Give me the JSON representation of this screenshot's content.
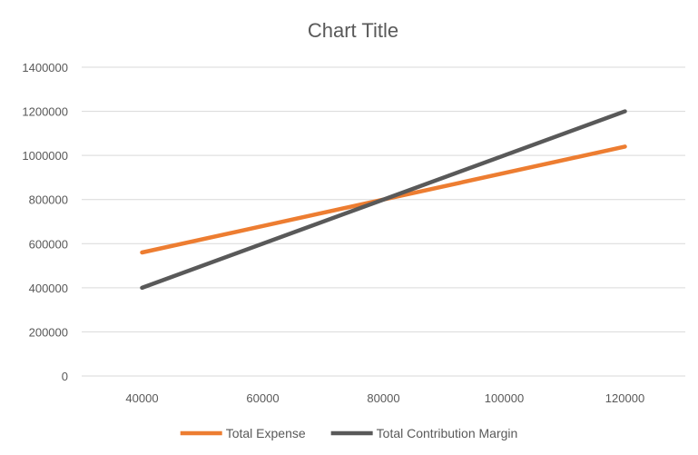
{
  "chart_data": {
    "type": "line",
    "title": "Chart Title",
    "xlabel": "",
    "ylabel": "",
    "x": [
      40000,
      80000,
      120000
    ],
    "x_ticks": [
      "40000",
      "60000",
      "80000",
      "100000",
      "120000"
    ],
    "y_ticks": [
      "0",
      "200000",
      "400000",
      "600000",
      "800000",
      "1000000",
      "1200000",
      "1400000"
    ],
    "xlim": [
      30000,
      130000
    ],
    "ylim": [
      0,
      1400000
    ],
    "grid": true,
    "legend_position": "bottom",
    "series": [
      {
        "name": "Total Expense",
        "color": "#ed7d31",
        "values": [
          560000,
          800000,
          1040000
        ]
      },
      {
        "name": "Total Contribution Margin",
        "color": "#595959",
        "values": [
          400000,
          800000,
          1200000
        ]
      }
    ]
  }
}
